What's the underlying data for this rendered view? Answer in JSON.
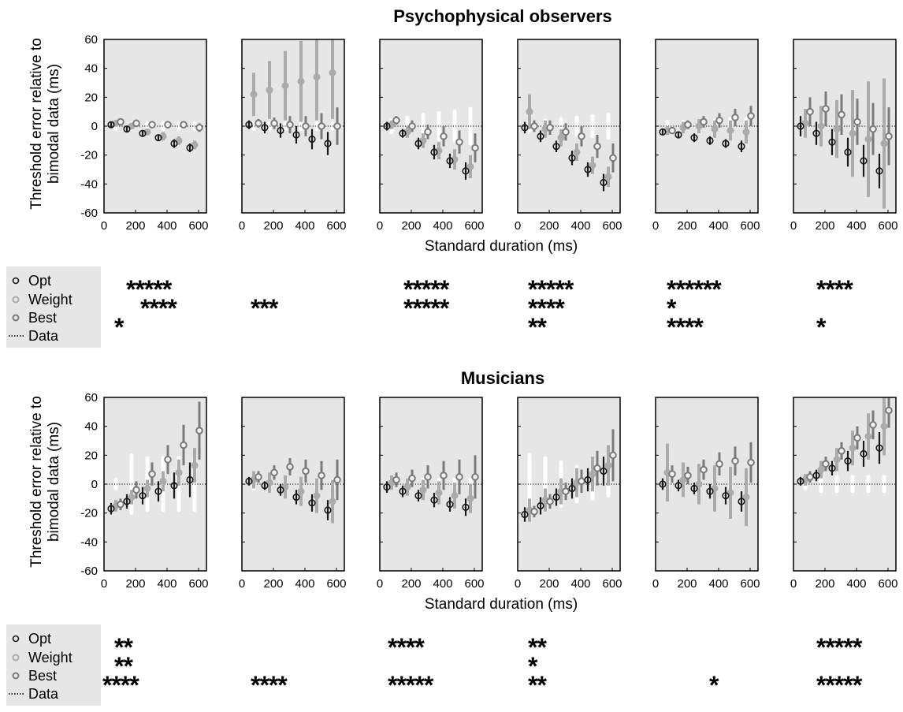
{
  "figure": {
    "xlabel": "Standard duration (ms)",
    "ylabel_line1": "Threshold error relative to",
    "ylabel_line2": "bimodal data (ms)"
  },
  "colors": {
    "opt": "#1a1a1a",
    "weight": "#ababab",
    "best": "#7a7a7a",
    "panel_bg": "#e6e6e6",
    "data_band": "#ffffff"
  },
  "legend": {
    "opt": "Opt",
    "weight": "Weight",
    "best": "Best",
    "data": "Data"
  },
  "chart_data": [
    {
      "type": "scatter",
      "title": "Psychophysical observers",
      "xlim": [
        0,
        650
      ],
      "ylim": [
        -60,
        60
      ],
      "xticks": [
        0,
        200,
        400,
        600
      ],
      "yticks": [
        -60,
        -40,
        -20,
        0,
        20,
        40,
        60
      ],
      "x": [
        75,
        175,
        275,
        375,
        475,
        575
      ],
      "panels": [
        {
          "opt": [
            [
              1,
              2
            ],
            [
              -2,
              2
            ],
            [
              -5,
              2
            ],
            [
              -8,
              2
            ],
            [
              -12,
              3
            ],
            [
              -15,
              3
            ]
          ],
          "weight": [
            [
              2,
              2
            ],
            [
              0,
              2
            ],
            [
              -4,
              2
            ],
            [
              -7,
              3
            ],
            [
              -10,
              3
            ],
            [
              -13,
              3
            ]
          ],
          "best": [
            [
              3,
              2
            ],
            [
              2,
              2
            ],
            [
              1,
              2
            ],
            [
              1,
              2
            ],
            [
              1,
              2
            ],
            [
              -1,
              3
            ]
          ],
          "data_halfwidth": [
            2,
            2,
            2,
            2,
            2,
            2
          ],
          "sig": {
            "opt": "*****",
            "weight": "****",
            "best": "*"
          }
        },
        {
          "opt": [
            [
              1,
              3
            ],
            [
              -1,
              4
            ],
            [
              -3,
              5
            ],
            [
              -6,
              6
            ],
            [
              -9,
              7
            ],
            [
              -12,
              8
            ]
          ],
          "weight": [
            [
              22,
              15
            ],
            [
              25,
              20
            ],
            [
              28,
              24
            ],
            [
              31,
              28
            ],
            [
              34,
              30
            ],
            [
              37,
              32
            ]
          ],
          "best": [
            [
              2,
              3
            ],
            [
              2,
              4
            ],
            [
              1,
              6
            ],
            [
              0,
              7
            ],
            [
              0,
              9
            ],
            [
              0,
              13
            ]
          ],
          "data_halfwidth": [
            2,
            2,
            2,
            2,
            2,
            2
          ],
          "sig": {
            "opt": "",
            "weight": "***",
            "best": ""
          }
        },
        {
          "opt": [
            [
              0,
              3
            ],
            [
              -5,
              3
            ],
            [
              -12,
              4
            ],
            [
              -18,
              5
            ],
            [
              -24,
              5
            ],
            [
              -31,
              6
            ]
          ],
          "weight": [
            [
              1,
              3
            ],
            [
              -4,
              4
            ],
            [
              -10,
              5
            ],
            [
              -17,
              6
            ],
            [
              -23,
              7
            ],
            [
              -28,
              8
            ]
          ],
          "best": [
            [
              4,
              3
            ],
            [
              0,
              4
            ],
            [
              -4,
              5
            ],
            [
              -7,
              7
            ],
            [
              -11,
              8
            ],
            [
              -15,
              10
            ]
          ],
          "data_halfwidth": [
            4,
            6,
            8,
            9,
            10,
            12
          ],
          "sig": {
            "opt": "*****",
            "weight": "*****",
            "best": ""
          }
        },
        {
          "opt": [
            [
              -1,
              4
            ],
            [
              -7,
              4
            ],
            [
              -14,
              4
            ],
            [
              -22,
              5
            ],
            [
              -30,
              5
            ],
            [
              -39,
              6
            ]
          ],
          "weight": [
            [
              10,
              12
            ],
            [
              -2,
              6
            ],
            [
              -8,
              6
            ],
            [
              -18,
              6
            ],
            [
              -27,
              6
            ],
            [
              -35,
              7
            ]
          ],
          "best": [
            [
              0,
              4
            ],
            [
              -1,
              5
            ],
            [
              -4,
              6
            ],
            [
              -7,
              7
            ],
            [
              -14,
              8
            ],
            [
              -22,
              10
            ]
          ],
          "data_halfwidth": [
            3,
            4,
            5,
            6,
            7,
            8
          ],
          "sig": {
            "opt": "*****",
            "weight": "****",
            "best": "**"
          }
        },
        {
          "opt": [
            [
              -4,
              2
            ],
            [
              -6,
              2
            ],
            [
              -8,
              3
            ],
            [
              -10,
              3
            ],
            [
              -12,
              3
            ],
            [
              -14,
              4
            ]
          ],
          "weight": [
            [
              -3,
              3
            ],
            [
              -1,
              4
            ],
            [
              0,
              5
            ],
            [
              -2,
              6
            ],
            [
              -3,
              7
            ],
            [
              -4,
              8
            ]
          ],
          "best": [
            [
              -3,
              2
            ],
            [
              1,
              3
            ],
            [
              3,
              4
            ],
            [
              4,
              5
            ],
            [
              6,
              6
            ],
            [
              7,
              7
            ]
          ],
          "data_halfwidth": [
            3,
            3,
            4,
            4,
            5,
            5
          ],
          "sig": {
            "opt": "******",
            "weight": "*",
            "best": "****"
          }
        },
        {
          "opt": [
            [
              0,
              7
            ],
            [
              -5,
              8
            ],
            [
              -11,
              9
            ],
            [
              -18,
              10
            ],
            [
              -24,
              11
            ],
            [
              -31,
              12
            ]
          ],
          "weight": [
            [
              2,
              10
            ],
            [
              0,
              14
            ],
            [
              -2,
              20
            ],
            [
              -5,
              30
            ],
            [
              -9,
              40
            ],
            [
              -12,
              45
            ]
          ],
          "best": [
            [
              10,
              10
            ],
            [
              12,
              12
            ],
            [
              8,
              14
            ],
            [
              3,
              16
            ],
            [
              -2,
              18
            ],
            [
              -7,
              20
            ]
          ],
          "data_halfwidth": [
            3,
            3,
            3,
            3,
            3,
            3
          ],
          "sig": {
            "opt": "****",
            "weight": "",
            "best": "*"
          }
        }
      ]
    },
    {
      "type": "scatter",
      "title": "Musicians",
      "xlim": [
        0,
        650
      ],
      "ylim": [
        -60,
        60
      ],
      "xticks": [
        0,
        200,
        400,
        600
      ],
      "yticks": [
        -60,
        -40,
        -20,
        0,
        20,
        40,
        60
      ],
      "x": [
        75,
        175,
        275,
        375,
        475,
        575
      ],
      "panels": [
        {
          "opt": [
            [
              -17,
              4
            ],
            [
              -12,
              5
            ],
            [
              -8,
              6
            ],
            [
              -5,
              7
            ],
            [
              -1,
              9
            ],
            [
              3,
              12
            ]
          ],
          "weight": [
            [
              -15,
              4
            ],
            [
              -9,
              5
            ],
            [
              -3,
              6
            ],
            [
              2,
              7
            ],
            [
              8,
              9
            ],
            [
              13,
              12
            ]
          ],
          "best": [
            [
              -14,
              4
            ],
            [
              -4,
              6
            ],
            [
              7,
              8
            ],
            [
              17,
              10
            ],
            [
              27,
              14
            ],
            [
              37,
              20
            ]
          ],
          "data_halfwidth": [
            3,
            20,
            18,
            18,
            18,
            18
          ],
          "sig": {
            "opt": "**",
            "weight": "**",
            "best": "****"
          }
        },
        {
          "opt": [
            [
              2,
              3
            ],
            [
              -1,
              3
            ],
            [
              -4,
              4
            ],
            [
              -9,
              5
            ],
            [
              -13,
              6
            ],
            [
              -18,
              7
            ]
          ],
          "weight": [
            [
              3,
              6
            ],
            [
              1,
              7
            ],
            [
              -2,
              8
            ],
            [
              -5,
              10
            ],
            [
              -8,
              12
            ],
            [
              -12,
              15
            ]
          ],
          "best": [
            [
              5,
              4
            ],
            [
              8,
              5
            ],
            [
              12,
              6
            ],
            [
              9,
              8
            ],
            [
              6,
              10
            ],
            [
              3,
              14
            ]
          ],
          "data_halfwidth": [
            3,
            3,
            3,
            3,
            3,
            3
          ],
          "sig": {
            "opt": "",
            "weight": "",
            "best": "****"
          }
        },
        {
          "opt": [
            [
              -2,
              4
            ],
            [
              -5,
              4
            ],
            [
              -8,
              4
            ],
            [
              -11,
              5
            ],
            [
              -14,
              5
            ],
            [
              -16,
              6
            ]
          ],
          "weight": [
            [
              1,
              5
            ],
            [
              -2,
              6
            ],
            [
              -4,
              7
            ],
            [
              -6,
              8
            ],
            [
              -8,
              9
            ],
            [
              -10,
              10
            ]
          ],
          "best": [
            [
              3,
              5
            ],
            [
              4,
              6
            ],
            [
              5,
              8
            ],
            [
              6,
              10
            ],
            [
              5,
              12
            ],
            [
              5,
              15
            ]
          ],
          "data_halfwidth": [
            3,
            3,
            3,
            3,
            3,
            3
          ],
          "sig": {
            "opt": "****",
            "weight": "",
            "best": "*****"
          }
        },
        {
          "opt": [
            [
              -21,
              5
            ],
            [
              -15,
              6
            ],
            [
              -9,
              6
            ],
            [
              -3,
              7
            ],
            [
              3,
              8
            ],
            [
              9,
              10
            ]
          ],
          "weight": [
            [
              -18,
              8
            ],
            [
              -11,
              8
            ],
            [
              -5,
              9
            ],
            [
              1,
              10
            ],
            [
              7,
              12
            ],
            [
              13,
              14
            ]
          ],
          "best": [
            [
              -19,
              4
            ],
            [
              -12,
              5
            ],
            [
              -5,
              6
            ],
            [
              2,
              8
            ],
            [
              11,
              12
            ],
            [
              20,
              18
            ]
          ],
          "data_halfwidth": [
            20,
            18,
            15,
            12,
            10,
            8
          ],
          "sig": {
            "opt": "**",
            "weight": "*",
            "best": "**"
          }
        },
        {
          "opt": [
            [
              0,
              4
            ],
            [
              -1,
              4
            ],
            [
              -3,
              4
            ],
            [
              -5,
              5
            ],
            [
              -8,
              6
            ],
            [
              -12,
              7
            ]
          ],
          "weight": [
            [
              8,
              20
            ],
            [
              3,
              12
            ],
            [
              0,
              14
            ],
            [
              -3,
              16
            ],
            [
              -6,
              18
            ],
            [
              -9,
              20
            ]
          ],
          "best": [
            [
              7,
              6
            ],
            [
              6,
              6
            ],
            [
              10,
              7
            ],
            [
              14,
              8
            ],
            [
              16,
              10
            ],
            [
              15,
              14
            ]
          ],
          "data_halfwidth": [
            3,
            3,
            3,
            3,
            3,
            3
          ],
          "sig": {
            "opt": "",
            "weight": "",
            "best": "*"
          }
        },
        {
          "opt": [
            [
              2,
              3
            ],
            [
              6,
              4
            ],
            [
              11,
              5
            ],
            [
              16,
              7
            ],
            [
              21,
              9
            ],
            [
              25,
              11
            ]
          ],
          "weight": [
            [
              3,
              4
            ],
            [
              10,
              6
            ],
            [
              17,
              8
            ],
            [
              25,
              12
            ],
            [
              33,
              16
            ],
            [
              40,
              20
            ]
          ],
          "best": [
            [
              5,
              4
            ],
            [
              14,
              5
            ],
            [
              23,
              6
            ],
            [
              32,
              8
            ],
            [
              41,
              10
            ],
            [
              51,
              12
            ]
          ],
          "data_halfwidth": [
            3,
            5,
            5,
            5,
            5,
            5
          ],
          "sig": {
            "opt": "*****",
            "weight": "",
            "best": "*****"
          }
        }
      ]
    }
  ]
}
